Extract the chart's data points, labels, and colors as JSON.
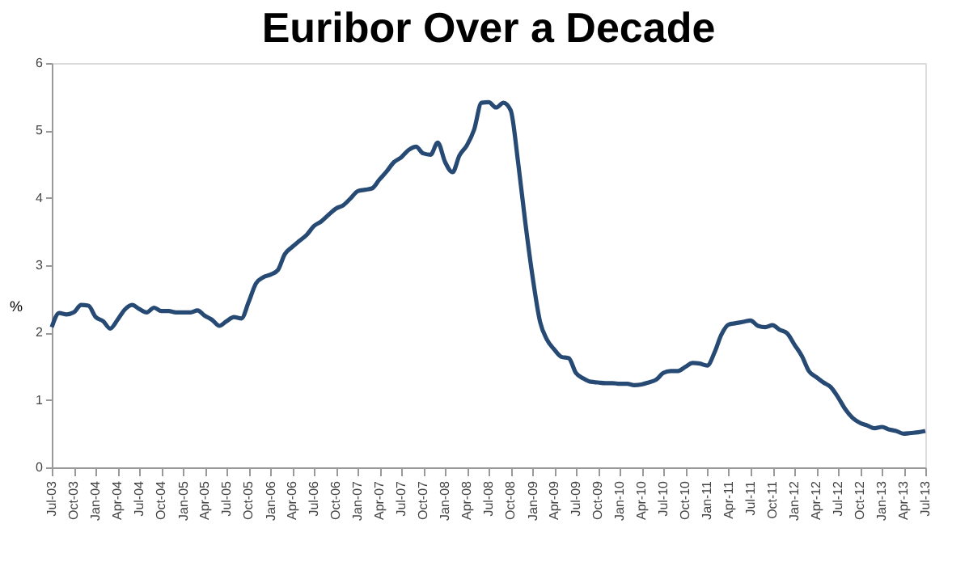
{
  "chart_data": {
    "type": "line",
    "title": "Euribor Over a Decade",
    "ylabel": "%",
    "x": [
      "2003-07",
      "2003-08",
      "2003-09",
      "2003-10",
      "2003-11",
      "2003-12",
      "2004-01",
      "2004-02",
      "2004-03",
      "2004-04",
      "2004-05",
      "2004-06",
      "2004-07",
      "2004-08",
      "2004-09",
      "2004-10",
      "2004-11",
      "2004-12",
      "2005-01",
      "2005-02",
      "2005-03",
      "2005-04",
      "2005-05",
      "2005-06",
      "2005-07",
      "2005-08",
      "2005-09",
      "2005-10",
      "2005-11",
      "2005-12",
      "2006-01",
      "2006-02",
      "2006-03",
      "2006-04",
      "2006-05",
      "2006-06",
      "2006-07",
      "2006-08",
      "2006-09",
      "2006-10",
      "2006-11",
      "2006-12",
      "2007-01",
      "2007-02",
      "2007-03",
      "2007-04",
      "2007-05",
      "2007-06",
      "2007-07",
      "2007-08",
      "2007-09",
      "2007-10",
      "2007-11",
      "2007-12",
      "2008-01",
      "2008-02",
      "2008-03",
      "2008-04",
      "2008-05",
      "2008-06",
      "2008-07",
      "2008-08",
      "2008-09",
      "2008-10",
      "2008-11",
      "2008-12",
      "2009-01",
      "2009-02",
      "2009-03",
      "2009-04",
      "2009-05",
      "2009-06",
      "2009-07",
      "2009-08",
      "2009-09",
      "2009-10",
      "2009-11",
      "2009-12",
      "2010-01",
      "2010-02",
      "2010-03",
      "2010-04",
      "2010-05",
      "2010-06",
      "2010-07",
      "2010-08",
      "2010-09",
      "2010-10",
      "2010-11",
      "2010-12",
      "2011-01",
      "2011-02",
      "2011-03",
      "2011-04",
      "2011-05",
      "2011-06",
      "2011-07",
      "2011-08",
      "2011-09",
      "2011-10",
      "2011-11",
      "2011-12",
      "2012-01",
      "2012-02",
      "2012-03",
      "2012-04",
      "2012-05",
      "2012-06",
      "2012-07",
      "2012-08",
      "2012-09",
      "2012-10",
      "2012-11",
      "2012-12",
      "2013-01",
      "2013-02",
      "2013-03",
      "2013-04",
      "2013-05",
      "2013-06",
      "2013-07"
    ],
    "series": [
      {
        "color": "#264a73",
        "values": [
          2.08,
          2.29,
          2.27,
          2.3,
          2.41,
          2.4,
          2.23,
          2.17,
          2.06,
          2.19,
          2.34,
          2.41,
          2.35,
          2.3,
          2.37,
          2.32,
          2.32,
          2.3,
          2.3,
          2.3,
          2.33,
          2.25,
          2.19,
          2.1,
          2.17,
          2.23,
          2.21,
          2.45,
          2.73,
          2.82,
          2.86,
          2.93,
          3.16,
          3.27,
          3.36,
          3.45,
          3.58,
          3.65,
          3.75,
          3.84,
          3.89,
          3.99,
          4.1,
          4.12,
          4.14,
          4.27,
          4.39,
          4.53,
          4.6,
          4.71,
          4.76,
          4.66,
          4.64,
          4.82,
          4.53,
          4.38,
          4.63,
          4.78,
          5.01,
          5.41,
          5.42,
          5.34,
          5.41,
          5.3,
          4.53,
          3.64,
          2.82,
          2.16,
          1.9,
          1.75,
          1.64,
          1.62,
          1.4,
          1.32,
          1.27,
          1.26,
          1.25,
          1.25,
          1.24,
          1.24,
          1.22,
          1.23,
          1.26,
          1.3,
          1.4,
          1.43,
          1.43,
          1.49,
          1.55,
          1.54,
          1.51,
          1.71,
          1.97,
          2.12,
          2.14,
          2.16,
          2.18,
          2.1,
          2.08,
          2.11,
          2.04,
          1.99,
          1.82,
          1.65,
          1.43,
          1.34,
          1.26,
          1.19,
          1.04,
          0.86,
          0.73,
          0.66,
          0.62,
          0.58,
          0.6,
          0.56,
          0.54,
          0.5,
          0.51,
          0.52,
          0.54
        ]
      }
    ],
    "xlim": [
      "2003-07",
      "2013-07"
    ],
    "xticks": [
      {
        "value": "2003-07",
        "label": "Jul-03"
      },
      {
        "value": "2003-10",
        "label": "Oct-03"
      },
      {
        "value": "2004-01",
        "label": "Jan-04"
      },
      {
        "value": "2004-04",
        "label": "Apr-04"
      },
      {
        "value": "2004-07",
        "label": "Jul-04"
      },
      {
        "value": "2004-10",
        "label": "Oct-04"
      },
      {
        "value": "2005-01",
        "label": "Jan-05"
      },
      {
        "value": "2005-04",
        "label": "Apr-05"
      },
      {
        "value": "2005-07",
        "label": "Jul-05"
      },
      {
        "value": "2005-10",
        "label": "Oct-05"
      },
      {
        "value": "2006-01",
        "label": "Jan-06"
      },
      {
        "value": "2006-04",
        "label": "Apr-06"
      },
      {
        "value": "2006-07",
        "label": "Jul-06"
      },
      {
        "value": "2006-10",
        "label": "Oct-06"
      },
      {
        "value": "2007-01",
        "label": "Jan-07"
      },
      {
        "value": "2007-04",
        "label": "Apr-07"
      },
      {
        "value": "2007-07",
        "label": "Jul-07"
      },
      {
        "value": "2007-10",
        "label": "Oct-07"
      },
      {
        "value": "2008-01",
        "label": "Jan-08"
      },
      {
        "value": "2008-04",
        "label": "Apr-08"
      },
      {
        "value": "2008-07",
        "label": "Jul-08"
      },
      {
        "value": "2008-10",
        "label": "Oct-08"
      },
      {
        "value": "2009-01",
        "label": "Jan-09"
      },
      {
        "value": "2009-04",
        "label": "Apr-09"
      },
      {
        "value": "2009-07",
        "label": "Jul-09"
      },
      {
        "value": "2009-10",
        "label": "Oct-09"
      },
      {
        "value": "2010-01",
        "label": "Jan-10"
      },
      {
        "value": "2010-04",
        "label": "Apr-10"
      },
      {
        "value": "2010-07",
        "label": "Jul-10"
      },
      {
        "value": "2010-10",
        "label": "Oct-10"
      },
      {
        "value": "2011-01",
        "label": "Jan-11"
      },
      {
        "value": "2011-04",
        "label": "Apr-11"
      },
      {
        "value": "2011-07",
        "label": "Jul-11"
      },
      {
        "value": "2011-10",
        "label": "Oct-11"
      },
      {
        "value": "2012-01",
        "label": "Jan-12"
      },
      {
        "value": "2012-04",
        "label": "Apr-12"
      },
      {
        "value": "2012-07",
        "label": "Jul-12"
      },
      {
        "value": "2012-10",
        "label": "Oct-12"
      },
      {
        "value": "2013-01",
        "label": "Jan-13"
      },
      {
        "value": "2013-04",
        "label": "Apr-13"
      },
      {
        "value": "2013-07",
        "label": "Jul-13"
      }
    ],
    "ylim": [
      0,
      6
    ],
    "yticks": [
      0,
      1,
      2,
      3,
      4,
      5,
      6
    ],
    "grid": false
  }
}
